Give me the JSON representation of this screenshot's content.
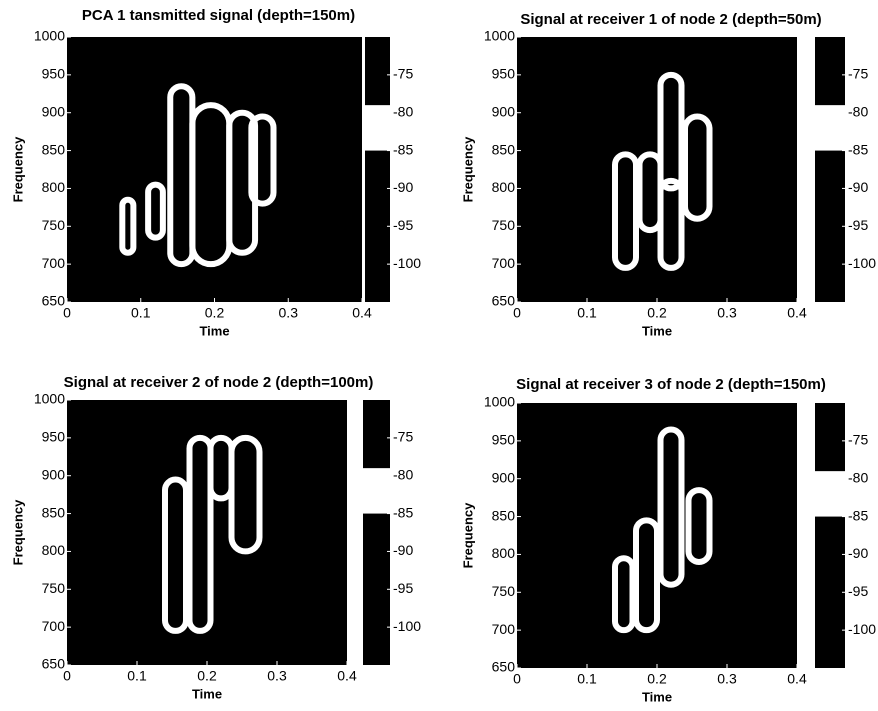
{
  "chart_data": [
    {
      "type": "spectrogram",
      "title": "PCA 1 tansmitted signal (depth=150m)",
      "xlabel": "Time",
      "ylabel": "Frequency",
      "xlim": [
        0,
        0.4
      ],
      "xticks": [
        0,
        0.1,
        0.2,
        0.3,
        0.4
      ],
      "ylim": [
        650,
        1000
      ],
      "yticks": [
        650,
        700,
        750,
        800,
        850,
        900,
        950,
        1000
      ],
      "clim": [
        -105,
        -70
      ],
      "cticks": [
        -75,
        -80,
        -85,
        -90,
        -95,
        -100
      ],
      "colorbar_band": [
        -85,
        -79
      ],
      "background": "#000000",
      "color": "#ffffff",
      "regions": [
        {
          "x": [
            0.075,
            0.09
          ],
          "y": [
            715,
            785
          ]
        },
        {
          "x": [
            0.11,
            0.13
          ],
          "y": [
            735,
            805
          ]
        },
        {
          "x": [
            0.14,
            0.17
          ],
          "y": [
            700,
            935
          ]
        },
        {
          "x": [
            0.17,
            0.22
          ],
          "y": [
            700,
            910
          ]
        },
        {
          "x": [
            0.22,
            0.255
          ],
          "y": [
            715,
            900
          ]
        },
        {
          "x": [
            0.25,
            0.28
          ],
          "y": [
            780,
            895
          ]
        }
      ]
    },
    {
      "type": "spectrogram",
      "title": "Signal at receiver 1 of node 2 (depth=50m)",
      "xlabel": "Time",
      "ylabel": "Frequency",
      "xlim": [
        0,
        0.4
      ],
      "xticks": [
        0,
        0.1,
        0.2,
        0.3,
        0.4
      ],
      "ylim": [
        650,
        1000
      ],
      "yticks": [
        650,
        700,
        750,
        800,
        850,
        900,
        950,
        1000
      ],
      "clim": [
        -105,
        -70
      ],
      "cticks": [
        -75,
        -80,
        -85,
        -90,
        -95,
        -100
      ],
      "colorbar_band": [
        -85,
        -79
      ],
      "background": "#000000",
      "color": "#ffffff",
      "regions": [
        {
          "x": [
            0.14,
            0.17
          ],
          "y": [
            695,
            845
          ]
        },
        {
          "x": [
            0.175,
            0.205
          ],
          "y": [
            745,
            845
          ]
        },
        {
          "x": [
            0.205,
            0.235
          ],
          "y": [
            800,
            950
          ]
        },
        {
          "x": [
            0.205,
            0.235
          ],
          "y": [
            695,
            810
          ]
        },
        {
          "x": [
            0.24,
            0.275
          ],
          "y": [
            760,
            895
          ]
        }
      ]
    },
    {
      "type": "spectrogram",
      "title": "Signal at receiver 2 of node 2 (depth=100m)",
      "xlabel": "Time",
      "ylabel": "Frequency",
      "xlim": [
        0,
        0.4
      ],
      "xticks": [
        0,
        0.1,
        0.2,
        0.3,
        0.4
      ],
      "ylim": [
        650,
        1000
      ],
      "yticks": [
        650,
        700,
        750,
        800,
        850,
        900,
        950,
        1000
      ],
      "clim": [
        -105,
        -70
      ],
      "cticks": [
        -75,
        -80,
        -85,
        -90,
        -95,
        -100
      ],
      "colorbar_band": [
        -85,
        -79
      ],
      "background": "#000000",
      "color": "#ffffff",
      "regions": [
        {
          "x": [
            0.14,
            0.17
          ],
          "y": [
            695,
            895
          ]
        },
        {
          "x": [
            0.175,
            0.205
          ],
          "y": [
            695,
            950
          ]
        },
        {
          "x": [
            0.205,
            0.235
          ],
          "y": [
            870,
            950
          ]
        },
        {
          "x": [
            0.235,
            0.275
          ],
          "y": [
            800,
            950
          ]
        }
      ]
    },
    {
      "type": "spectrogram",
      "title": "Signal at receiver 3 of node 2 (depth=150m)",
      "xlabel": "Time",
      "ylabel": "Frequency",
      "xlim": [
        0,
        0.4
      ],
      "xticks": [
        0,
        0.1,
        0.2,
        0.3,
        0.4
      ],
      "ylim": [
        650,
        1000
      ],
      "yticks": [
        650,
        700,
        750,
        800,
        850,
        900,
        950,
        1000
      ],
      "clim": [
        -105,
        -70
      ],
      "cticks": [
        -75,
        -80,
        -85,
        -90,
        -95,
        -100
      ],
      "colorbar_band": [
        -85,
        -79
      ],
      "background": "#000000",
      "color": "#ffffff",
      "regions": [
        {
          "x": [
            0.14,
            0.165
          ],
          "y": [
            700,
            795
          ]
        },
        {
          "x": [
            0.17,
            0.2
          ],
          "y": [
            700,
            845
          ]
        },
        {
          "x": [
            0.205,
            0.235
          ],
          "y": [
            760,
            965
          ]
        },
        {
          "x": [
            0.245,
            0.275
          ],
          "y": [
            790,
            885
          ]
        }
      ]
    }
  ]
}
